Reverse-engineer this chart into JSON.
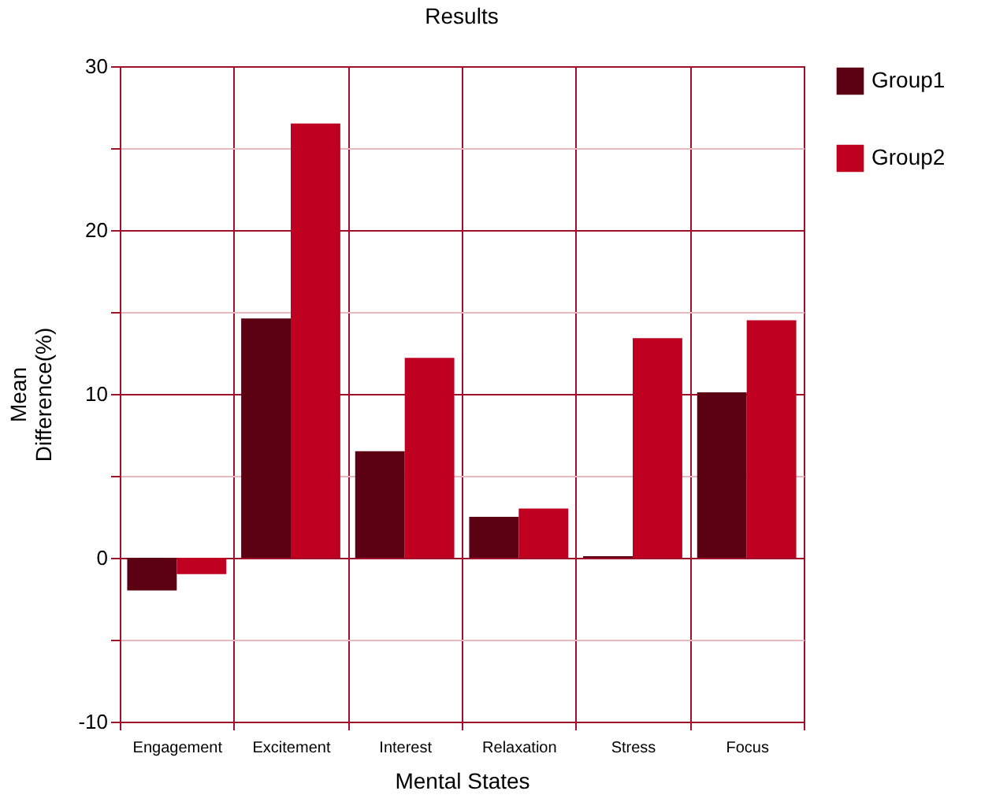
{
  "chart_data": {
    "type": "bar",
    "title": "Results",
    "xlabel": "Mental States",
    "ylabel": "Mean Difference(%)",
    "categories": [
      "Engagement",
      "Excitement",
      "Interest",
      "Relaxation",
      "Stress",
      "Focus"
    ],
    "series": [
      {
        "name": "Group1",
        "color": "#5c0013",
        "values": [
          -2.0,
          14.6,
          6.5,
          2.5,
          0.1,
          10.1
        ]
      },
      {
        "name": "Group2",
        "color": "#c00020",
        "values": [
          -1.0,
          26.5,
          12.2,
          3.0,
          13.4,
          14.5
        ]
      }
    ],
    "ylim": [
      -10,
      30
    ],
    "yticks": [
      -10,
      {
        "value": -5,
        "label": null
      },
      0,
      {
        "value": 5,
        "label": null
      },
      10,
      {
        "value": 15,
        "label": null
      },
      20,
      {
        "value": 25,
        "label": null
      },
      30
    ],
    "grid": true,
    "legend": "right"
  }
}
